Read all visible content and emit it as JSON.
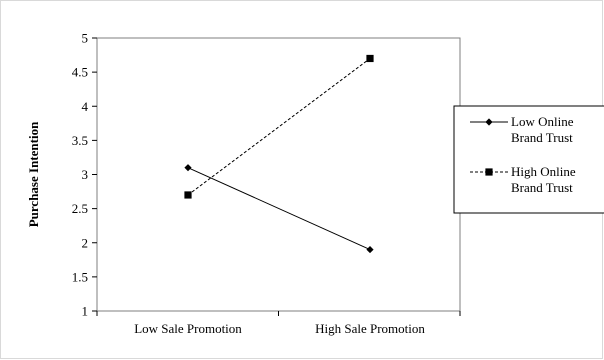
{
  "chart_data": {
    "type": "line",
    "categories": [
      "Low Sale Promotion",
      "High Sale Promotion"
    ],
    "series": [
      {
        "name": "Low Online Brand Trust",
        "legend_lines": [
          "Low Online",
          "Brand Trust"
        ],
        "values": [
          3.1,
          1.9
        ],
        "marker": "diamond",
        "line_style": "solid",
        "color": "#000000"
      },
      {
        "name": "High Online Brand Trust",
        "legend_lines": [
          "High Online",
          "Brand Trust"
        ],
        "values": [
          2.7,
          4.7
        ],
        "marker": "square",
        "line_style": "dashed",
        "color": "#000000"
      }
    ],
    "title": "",
    "xlabel": "",
    "ylabel": "Purchase Intention",
    "ylim": [
      1,
      5
    ],
    "yticks": [
      1,
      1.5,
      2,
      2.5,
      3,
      3.5,
      4,
      4.5,
      5
    ],
    "ytick_labels": [
      "1",
      "1.5",
      "2",
      "2.5",
      "3",
      "3.5",
      "4",
      "4.5",
      "5"
    ],
    "grid": false,
    "legend_position": "right"
  }
}
